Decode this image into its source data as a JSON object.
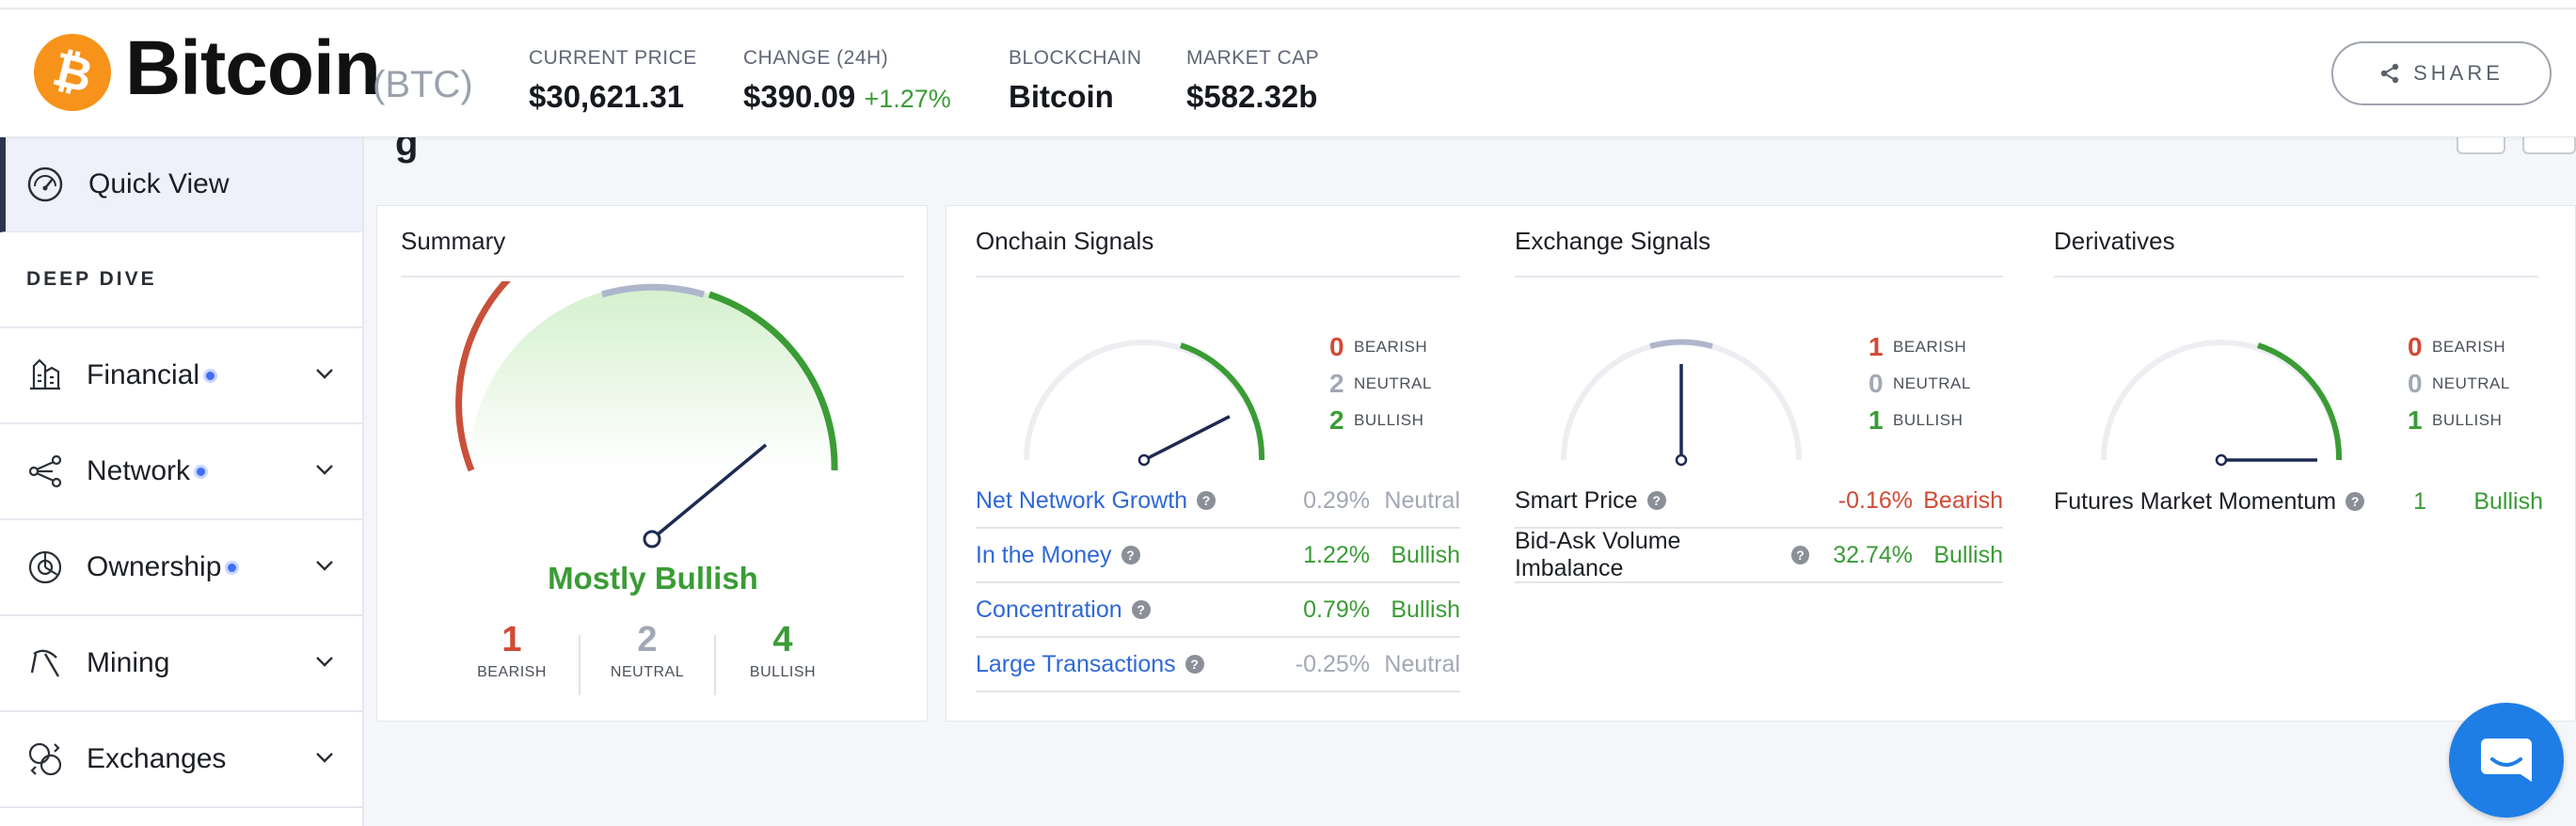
{
  "coin": {
    "name": "Bitcoin",
    "ticker": "(BTC)"
  },
  "stats": [
    {
      "label": "CURRENT PRICE",
      "value": "$30,621.31"
    },
    {
      "label": "CHANGE (24H)",
      "value": "$390.09",
      "change": "+1.27%"
    },
    {
      "label": "BLOCKCHAIN",
      "value": "Bitcoin"
    },
    {
      "label": "MARKET CAP",
      "value": "$582.32b"
    }
  ],
  "share": {
    "label": "SHARE"
  },
  "sidebar": {
    "quick_view": "Quick View",
    "deep_dive": "DEEP DIVE",
    "items": [
      {
        "label": "Financial",
        "icon": "financial-icon",
        "dot": true
      },
      {
        "label": "Network",
        "icon": "network-icon",
        "dot": true
      },
      {
        "label": "Ownership",
        "icon": "ownership-icon",
        "dot": true
      },
      {
        "label": "Mining",
        "icon": "pickaxe-icon",
        "dot": false
      },
      {
        "label": "Exchanges",
        "icon": "exchanges-icon",
        "dot": false
      }
    ]
  },
  "page_title_fragment": "g",
  "summary": {
    "title": "Summary",
    "verdict": "Mostly Bullish",
    "gauge_position": 0.78,
    "counts": [
      {
        "num": "1",
        "label": "BEARISH"
      },
      {
        "num": "2",
        "label": "NEUTRAL"
      },
      {
        "num": "4",
        "label": "BULLISH"
      }
    ]
  },
  "onchain": {
    "title": "Onchain Signals",
    "gauge_position": 0.85,
    "legend": [
      {
        "num": "0",
        "label": "BEARISH"
      },
      {
        "num": "2",
        "label": "NEUTRAL"
      },
      {
        "num": "2",
        "label": "BULLISH"
      }
    ],
    "metrics": [
      {
        "name": "Net Network Growth",
        "pct": "0.29%",
        "signal": "Neutral"
      },
      {
        "name": "In the Money",
        "pct": "1.22%",
        "signal": "Bullish"
      },
      {
        "name": "Concentration",
        "pct": "0.79%",
        "signal": "Bullish"
      },
      {
        "name": "Large Transactions",
        "pct": "-0.25%",
        "signal": "Neutral"
      }
    ]
  },
  "exchange": {
    "title": "Exchange Signals",
    "gauge_position": 0.5,
    "legend": [
      {
        "num": "1",
        "label": "BEARISH"
      },
      {
        "num": "0",
        "label": "NEUTRAL"
      },
      {
        "num": "1",
        "label": "BULLISH"
      }
    ],
    "metrics": [
      {
        "name": "Smart Price",
        "pct": "-0.16%",
        "signal": "Bearish"
      },
      {
        "name": "Bid-Ask Volume Imbalance",
        "pct": "32.74%",
        "signal": "Bullish"
      }
    ]
  },
  "derivatives": {
    "title": "Derivatives",
    "gauge_position": 1.0,
    "legend": [
      {
        "num": "0",
        "label": "BEARISH"
      },
      {
        "num": "0",
        "label": "NEUTRAL"
      },
      {
        "num": "1",
        "label": "BULLISH"
      }
    ],
    "metrics": [
      {
        "name": "Futures Market Momentum",
        "pct": "1",
        "signal": "Bullish"
      }
    ]
  },
  "colors": {
    "bearish": "#d24a35",
    "neutral": "#a2a8b4",
    "bullish": "#3a9c35",
    "link": "#2f68d8",
    "brand": "#f7931a"
  }
}
